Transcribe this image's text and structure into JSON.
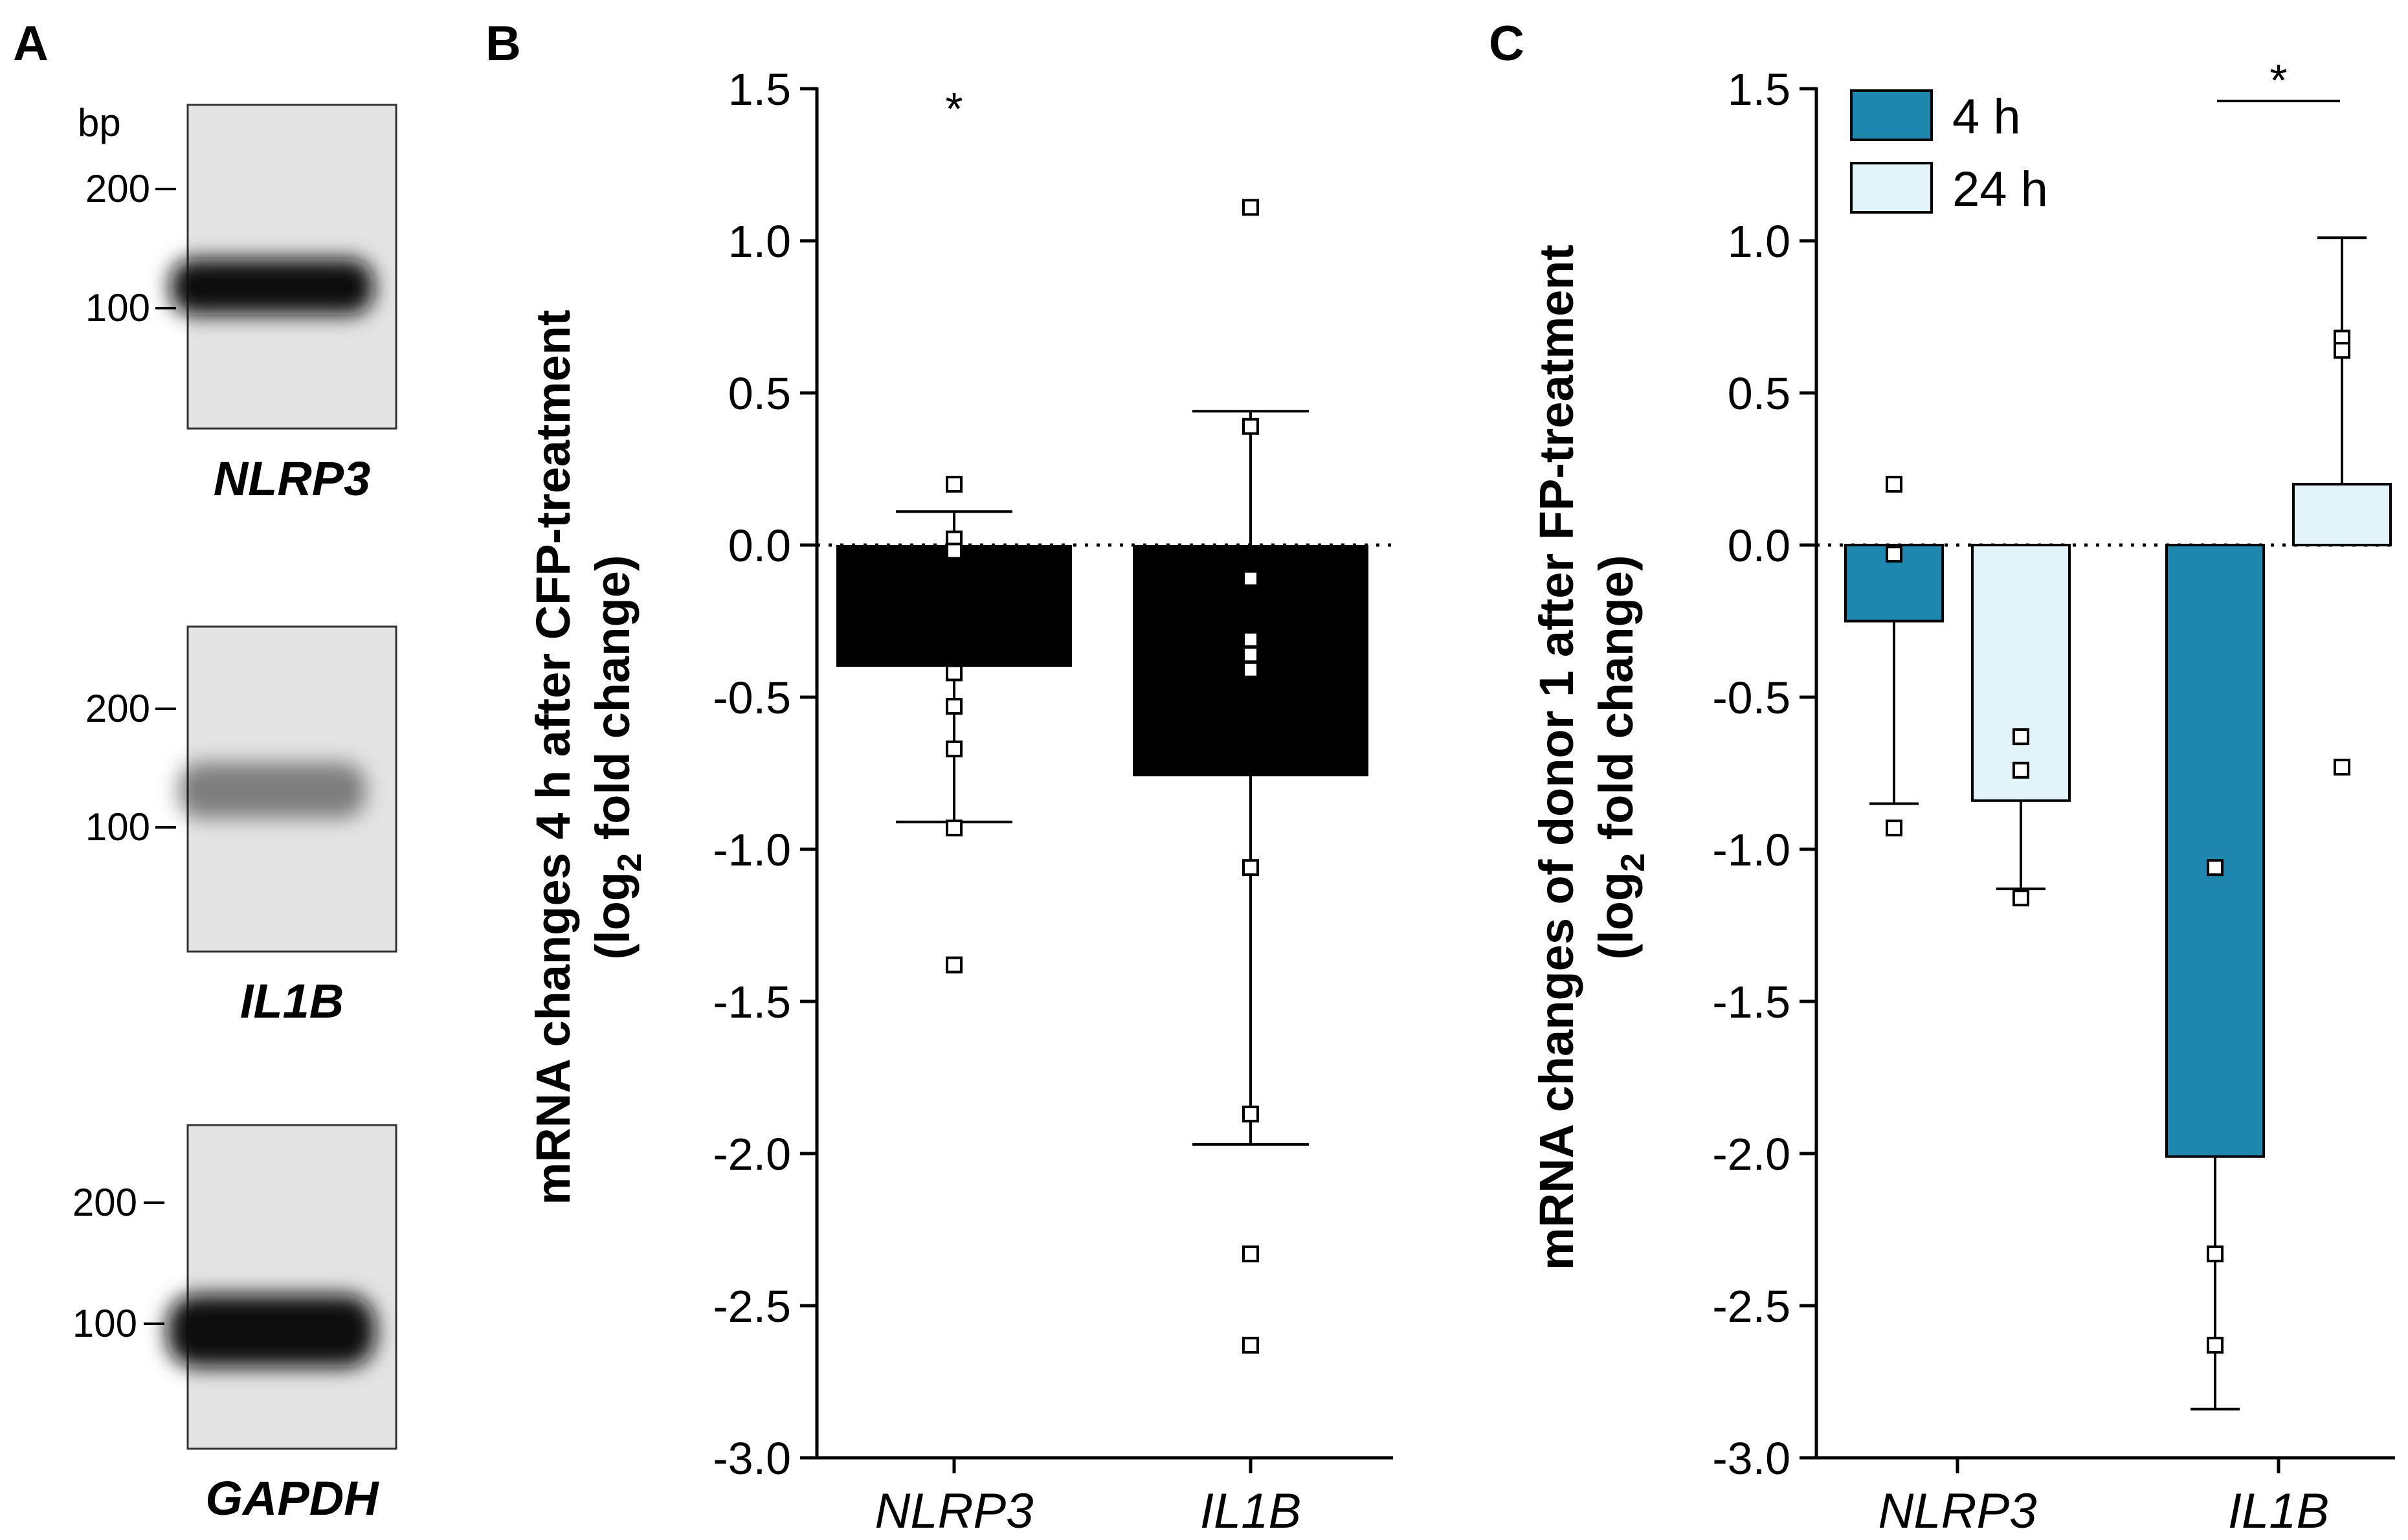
{
  "panel_labels": {
    "a": "A",
    "b": "B",
    "c": "C"
  },
  "colors": {
    "bar_b": "#000000",
    "bar_4h": "#1f87ad",
    "bar_24h": "#e2f4fa",
    "ink": "#000000",
    "gel_bg": "#e4e4e4",
    "band": "#0a0a0a"
  },
  "gel": {
    "bp_label": "bp",
    "markers": [
      "200",
      "100"
    ],
    "genes": [
      "NLRP3",
      "IL1B",
      "GAPDH"
    ],
    "band_intensity": [
      1.0,
      0.45,
      1.0
    ]
  },
  "chart_data": [
    {
      "type": "bar",
      "panel": "B",
      "title": "",
      "ylabel_line1": "mRNA changes 4 h after CFP-treatment",
      "ylabel_line2_pre": "(log",
      "ylabel_line2_sub": "2",
      "ylabel_line2_post": " fold change)",
      "categories": [
        "NLRP3",
        "IL1B"
      ],
      "series": [
        {
          "name": "4 h",
          "values": [
            -0.4,
            -0.76
          ]
        }
      ],
      "error_upper": [
        0.11,
        0.44
      ],
      "error_lower": [
        -0.91,
        -1.97
      ],
      "points": [
        [
          0.2,
          0.02,
          -0.02,
          -0.42,
          -0.53,
          -0.67,
          -0.93,
          -1.38
        ],
        [
          1.11,
          0.39,
          -0.11,
          -0.31,
          -0.36,
          -0.41,
          -1.06,
          -1.87,
          -2.33,
          -2.63
        ]
      ],
      "significance": [
        {
          "category": "NLRP3",
          "label": "*"
        }
      ],
      "ylim": [
        -3.0,
        1.5
      ],
      "yticks": [
        "1.5",
        "1.0",
        "0.5",
        "0.0",
        "-0.5",
        "-1.0",
        "-1.5",
        "-2.0",
        "-2.5",
        "-3.0"
      ],
      "ytick_values": [
        1.5,
        1.0,
        0.5,
        0.0,
        -0.5,
        -1.0,
        -1.5,
        -2.0,
        -2.5,
        -3.0
      ]
    },
    {
      "type": "bar",
      "panel": "C",
      "title": "",
      "ylabel_line1": "mRNA changes of donor 1 after FP-treatment",
      "ylabel_line2_pre": "(log",
      "ylabel_line2_sub": "2",
      "ylabel_line2_post": " fold change)",
      "categories": [
        "NLRP3",
        "IL1B"
      ],
      "series": [
        {
          "name": "4 h",
          "values": [
            -0.25,
            -2.01
          ],
          "error_end": [
            -0.85,
            -2.84
          ],
          "points": [
            [
              0.2,
              -0.03,
              -0.93
            ],
            [
              -1.06,
              -2.33,
              -2.63
            ]
          ]
        },
        {
          "name": "24 h",
          "values": [
            -0.84,
            0.2
          ],
          "error_end": [
            -1.13,
            1.01
          ],
          "points": [
            [
              -0.63,
              -0.74,
              -1.16
            ],
            [
              0.68,
              0.64,
              -0.73
            ]
          ]
        }
      ],
      "significance": [
        {
          "category": "IL1B",
          "label": "*"
        }
      ],
      "legend": {
        "placement": "top-left",
        "entries": [
          "4 h",
          "24 h"
        ]
      },
      "ylim": [
        -3.0,
        1.5
      ],
      "yticks": [
        "1.5",
        "1.0",
        "0.5",
        "0.0",
        "-0.5",
        "-1.0",
        "-1.5",
        "-2.0",
        "-2.5",
        "-3.0"
      ],
      "ytick_values": [
        1.5,
        1.0,
        0.5,
        0.0,
        -0.5,
        -1.0,
        -1.5,
        -2.0,
        -2.5,
        -3.0
      ]
    }
  ]
}
